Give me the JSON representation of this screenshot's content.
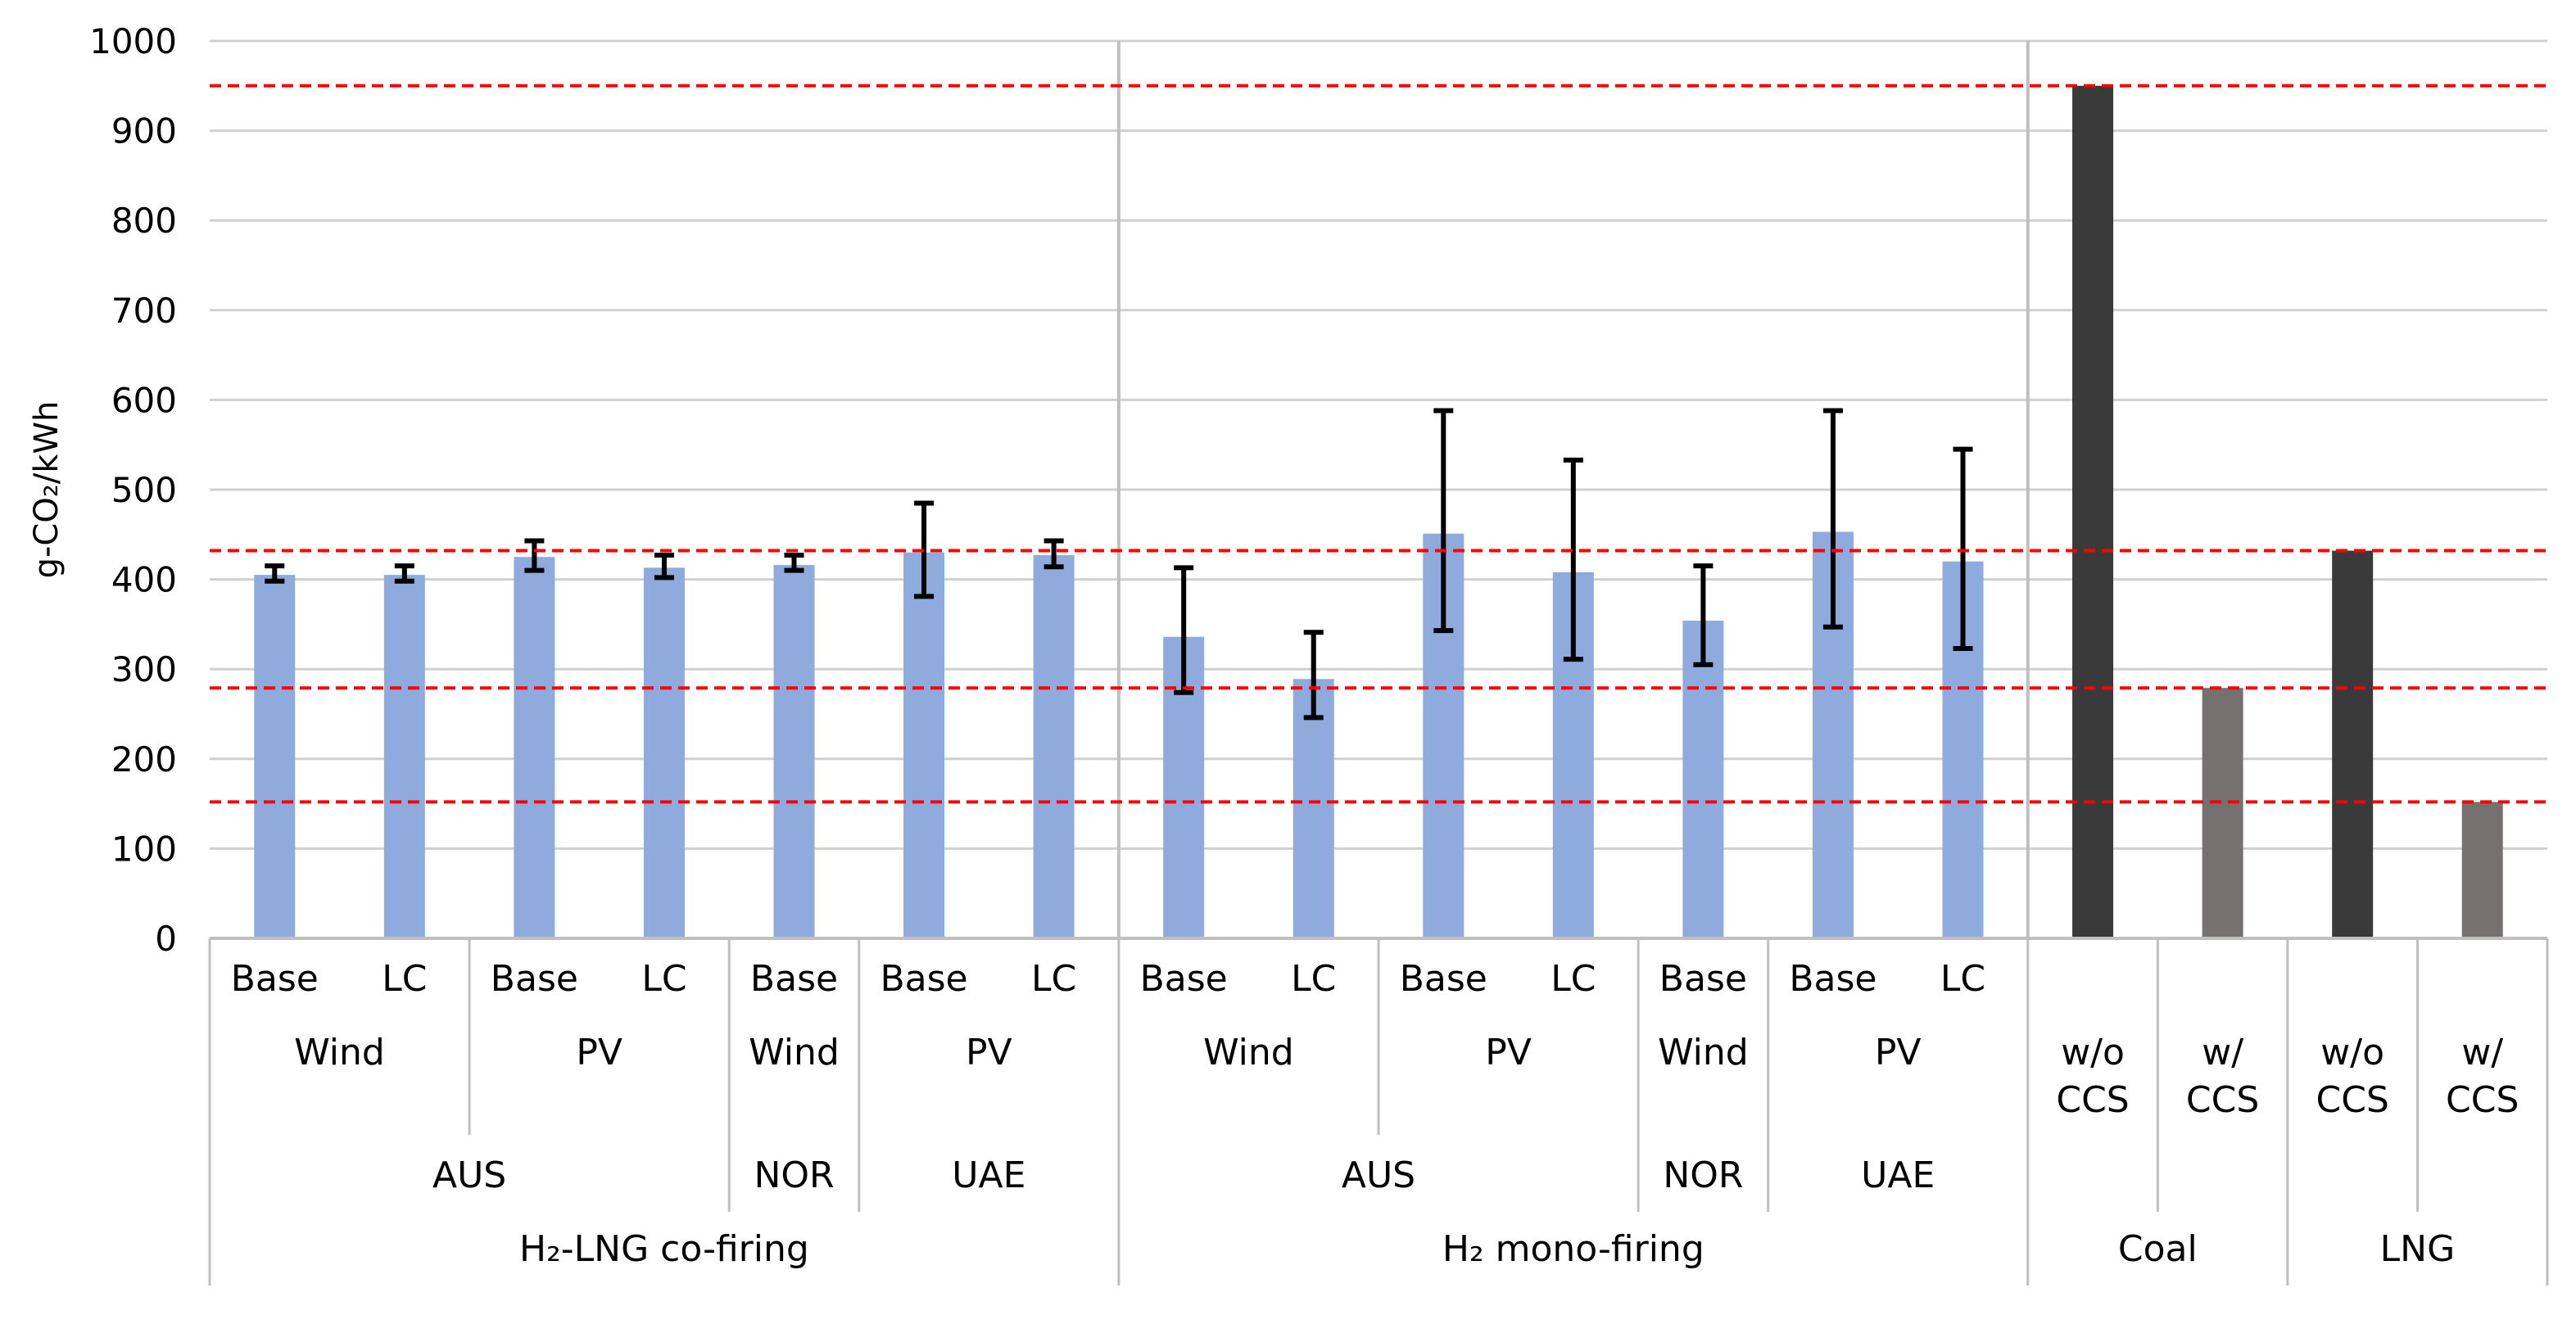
{
  "chart_data": {
    "type": "bar",
    "title": "",
    "ylabel": "g-CO₂/kWh",
    "xlabel": "",
    "ylim": [
      0,
      1000
    ],
    "yticks": [
      0,
      100,
      200,
      300,
      400,
      500,
      600,
      700,
      800,
      900,
      1000
    ],
    "grid": true,
    "reference_lines": [
      950,
      432,
      279,
      152
    ],
    "colors": {
      "h2": "#8faadc",
      "without_ccs": "#3a3a3a",
      "with_ccs": "#767171",
      "reference": "#ff0000",
      "grid": "#d0d0d0",
      "error_bar": "#000000"
    },
    "bars": [
      {
        "group": "H₂-LNG co-firing",
        "country": "AUS",
        "source": "Wind",
        "case": "Base",
        "value": 405,
        "err_low": 398,
        "err_high": 415,
        "color": "h2"
      },
      {
        "group": "H₂-LNG co-firing",
        "country": "AUS",
        "source": "Wind",
        "case": "LC",
        "value": 405,
        "err_low": 398,
        "err_high": 415,
        "color": "h2"
      },
      {
        "group": "H₂-LNG co-firing",
        "country": "AUS",
        "source": "PV",
        "case": "Base",
        "value": 425,
        "err_low": 410,
        "err_high": 443,
        "color": "h2"
      },
      {
        "group": "H₂-LNG co-firing",
        "country": "AUS",
        "source": "PV",
        "case": "LC",
        "value": 413,
        "err_low": 402,
        "err_high": 427,
        "color": "h2"
      },
      {
        "group": "H₂-LNG co-firing",
        "country": "NOR",
        "source": "Wind",
        "case": "Base",
        "value": 416,
        "err_low": 410,
        "err_high": 427,
        "color": "h2"
      },
      {
        "group": "H₂-LNG co-firing",
        "country": "UAE",
        "source": "PV",
        "case": "Base",
        "value": 430,
        "err_low": 381,
        "err_high": 485,
        "color": "h2"
      },
      {
        "group": "H₂-LNG co-firing",
        "country": "UAE",
        "source": "PV",
        "case": "LC",
        "value": 427,
        "err_low": 414,
        "err_high": 443,
        "color": "h2"
      },
      {
        "group": "H₂ mono-firing",
        "country": "AUS",
        "source": "Wind",
        "case": "Base",
        "value": 336,
        "err_low": 274,
        "err_high": 413,
        "color": "h2"
      },
      {
        "group": "H₂ mono-firing",
        "country": "AUS",
        "source": "Wind",
        "case": "LC",
        "value": 289,
        "err_low": 246,
        "err_high": 341,
        "color": "h2"
      },
      {
        "group": "H₂ mono-firing",
        "country": "AUS",
        "source": "PV",
        "case": "Base",
        "value": 451,
        "err_low": 343,
        "err_high": 588,
        "color": "h2"
      },
      {
        "group": "H₂ mono-firing",
        "country": "AUS",
        "source": "PV",
        "case": "LC",
        "value": 408,
        "err_low": 311,
        "err_high": 533,
        "color": "h2"
      },
      {
        "group": "H₂ mono-firing",
        "country": "NOR",
        "source": "Wind",
        "case": "Base",
        "value": 354,
        "err_low": 305,
        "err_high": 415,
        "color": "h2"
      },
      {
        "group": "H₂ mono-firing",
        "country": "UAE",
        "source": "PV",
        "case": "Base",
        "value": 453,
        "err_low": 347,
        "err_high": 588,
        "color": "h2"
      },
      {
        "group": "H₂ mono-firing",
        "country": "UAE",
        "source": "PV",
        "case": "LC",
        "value": 420,
        "err_low": 323,
        "err_high": 545,
        "color": "h2"
      },
      {
        "group": "Coal",
        "country": "",
        "source": "w/o\nCCS",
        "case": "",
        "value": 950,
        "color": "without_ccs"
      },
      {
        "group": "Coal",
        "country": "",
        "source": "w/\nCCS",
        "case": "",
        "value": 279,
        "color": "with_ccs"
      },
      {
        "group": "LNG",
        "country": "",
        "source": "w/o\nCCS",
        "case": "",
        "value": 432,
        "color": "without_ccs"
      },
      {
        "group": "LNG",
        "country": "",
        "source": "w/\nCCS",
        "case": "",
        "value": 152,
        "color": "with_ccs"
      }
    ]
  }
}
